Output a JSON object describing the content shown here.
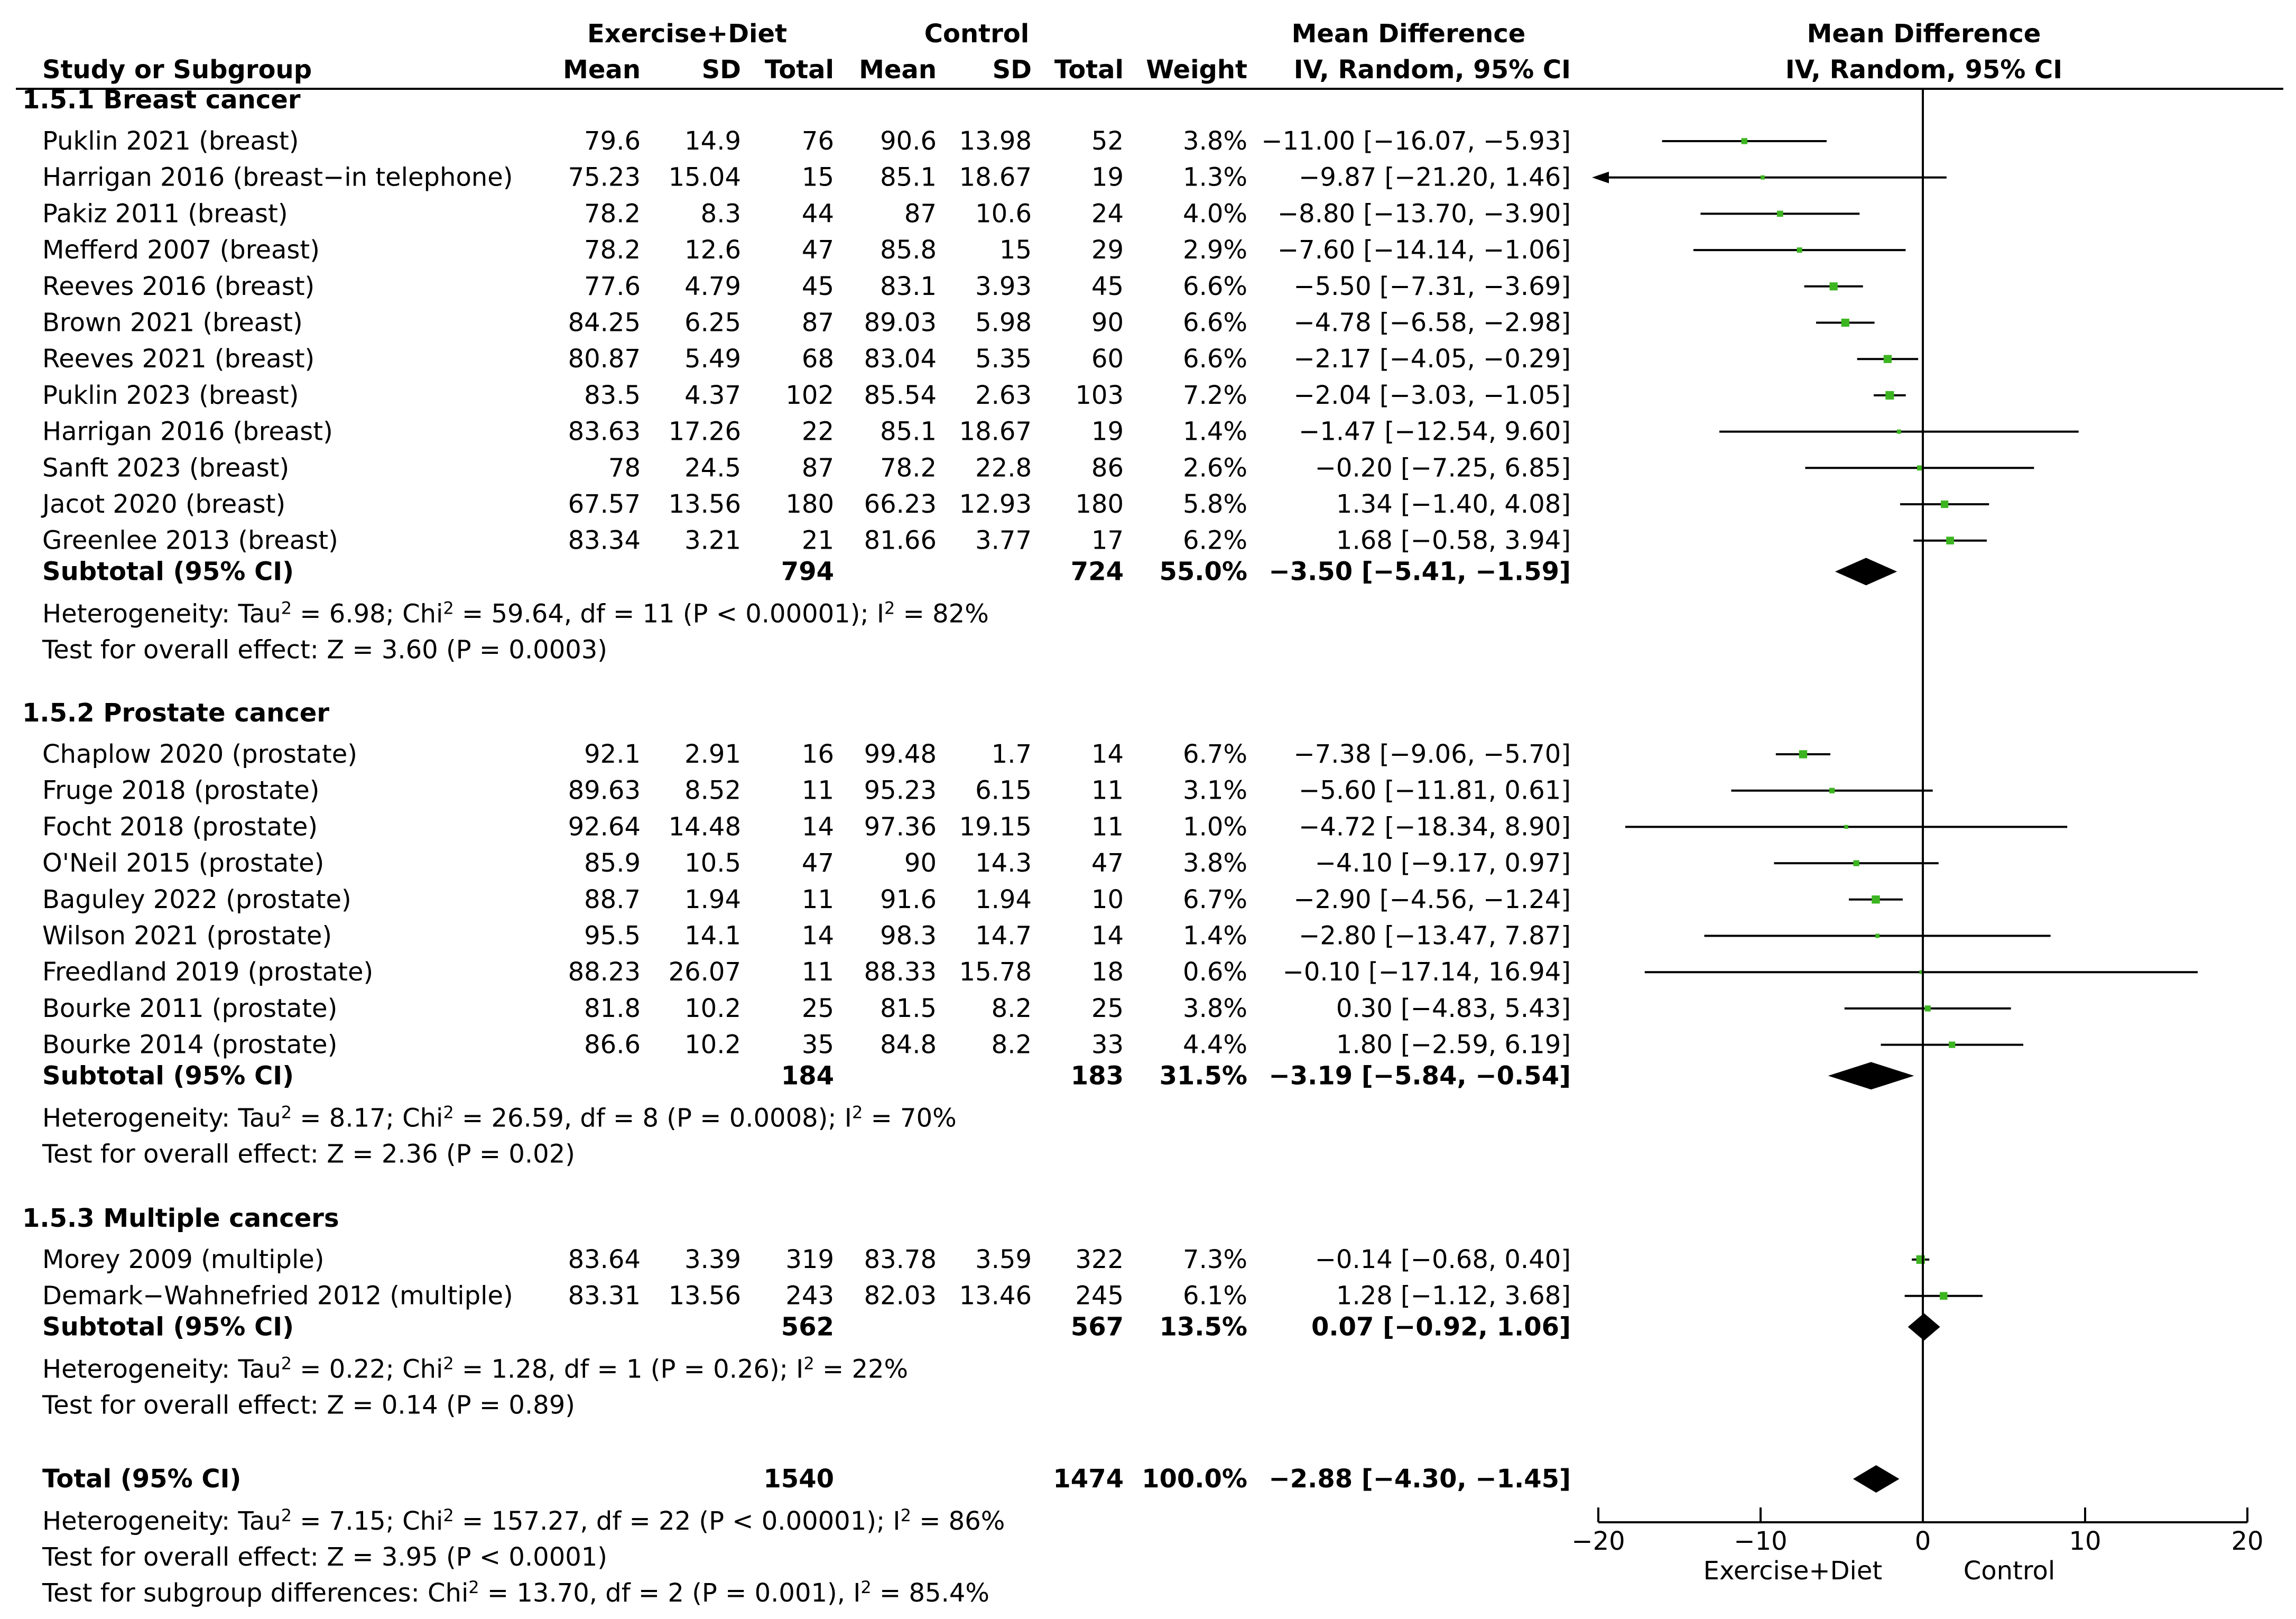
{
  "chart_data": {
    "type": "forest",
    "title": "",
    "header": {
      "group1": "Exercise+Diet",
      "group2": "Control",
      "md_group": "Mean Difference",
      "study": "Study or Subgroup",
      "mean": "Mean",
      "sd": "SD",
      "total": "Total",
      "weight": "Weight",
      "md_method": "IV, Random, 95% CI",
      "plot_title": "Mean Difference",
      "plot_method": "IV, Random, 95% CI"
    },
    "xaxis": {
      "ticks": [
        -20,
        -10,
        0,
        10,
        20
      ],
      "tick_labels": [
        "−20",
        "−10",
        "0",
        "10",
        "20"
      ],
      "xlim": [
        -20,
        20
      ],
      "label_left": "Exercise+Diet",
      "label_right": "Control"
    },
    "subgroups": [
      {
        "title": "1.5.1 Breast cancer",
        "studies": [
          {
            "name": "Puklin 2021 (breast)",
            "m1": "79.6",
            "sd1": "14.9",
            "n1": "76",
            "m2": "90.6",
            "sd2": "13.98",
            "n2": "52",
            "weight": "3.8%",
            "ci_text": "−11.00 [−16.07, −5.93]",
            "md": -11.0,
            "lo": -16.07,
            "hi": -5.93
          },
          {
            "name": "Harrigan 2016 (breast−in telephone)",
            "m1": "75.23",
            "sd1": "15.04",
            "n1": "15",
            "m2": "85.1",
            "sd2": "18.67",
            "n2": "19",
            "weight": "1.3%",
            "ci_text": "−9.87 [−21.20, 1.46]",
            "md": -9.87,
            "lo": -21.2,
            "hi": 1.46
          },
          {
            "name": "Pakiz 2011 (breast)",
            "m1": "78.2",
            "sd1": "8.3",
            "n1": "44",
            "m2": "87",
            "sd2": "10.6",
            "n2": "24",
            "weight": "4.0%",
            "ci_text": "−8.80 [−13.70, −3.90]",
            "md": -8.8,
            "lo": -13.7,
            "hi": -3.9
          },
          {
            "name": "Mefferd 2007 (breast)",
            "m1": "78.2",
            "sd1": "12.6",
            "n1": "47",
            "m2": "85.8",
            "sd2": "15",
            "n2": "29",
            "weight": "2.9%",
            "ci_text": "−7.60 [−14.14, −1.06]",
            "md": -7.6,
            "lo": -14.14,
            "hi": -1.06
          },
          {
            "name": "Reeves 2016 (breast)",
            "m1": "77.6",
            "sd1": "4.79",
            "n1": "45",
            "m2": "83.1",
            "sd2": "3.93",
            "n2": "45",
            "weight": "6.6%",
            "ci_text": "−5.50 [−7.31, −3.69]",
            "md": -5.5,
            "lo": -7.31,
            "hi": -3.69
          },
          {
            "name": "Brown 2021 (breast)",
            "m1": "84.25",
            "sd1": "6.25",
            "n1": "87",
            "m2": "89.03",
            "sd2": "5.98",
            "n2": "90",
            "weight": "6.6%",
            "ci_text": "−4.78 [−6.58, −2.98]",
            "md": -4.78,
            "lo": -6.58,
            "hi": -2.98
          },
          {
            "name": "Reeves 2021 (breast)",
            "m1": "80.87",
            "sd1": "5.49",
            "n1": "68",
            "m2": "83.04",
            "sd2": "5.35",
            "n2": "60",
            "weight": "6.6%",
            "ci_text": "−2.17 [−4.05, −0.29]",
            "md": -2.17,
            "lo": -4.05,
            "hi": -0.29
          },
          {
            "name": "Puklin  2023 (breast)",
            "m1": "83.5",
            "sd1": "4.37",
            "n1": "102",
            "m2": "85.54",
            "sd2": "2.63",
            "n2": "103",
            "weight": "7.2%",
            "ci_text": "−2.04 [−3.03, −1.05]",
            "md": -2.04,
            "lo": -3.03,
            "hi": -1.05
          },
          {
            "name": "Harrigan 2016 (breast)",
            "m1": "83.63",
            "sd1": "17.26",
            "n1": "22",
            "m2": "85.1",
            "sd2": "18.67",
            "n2": "19",
            "weight": "1.4%",
            "ci_text": "−1.47 [−12.54, 9.60]",
            "md": -1.47,
            "lo": -12.54,
            "hi": 9.6
          },
          {
            "name": "Sanft 2023 (breast)",
            "m1": "78",
            "sd1": "24.5",
            "n1": "87",
            "m2": "78.2",
            "sd2": "22.8",
            "n2": "86",
            "weight": "2.6%",
            "ci_text": "−0.20 [−7.25, 6.85]",
            "md": -0.2,
            "lo": -7.25,
            "hi": 6.85
          },
          {
            "name": "Jacot 2020 (breast)",
            "m1": "67.57",
            "sd1": "13.56",
            "n1": "180",
            "m2": "66.23",
            "sd2": "12.93",
            "n2": "180",
            "weight": "5.8%",
            "ci_text": "1.34 [−1.40, 4.08]",
            "md": 1.34,
            "lo": -1.4,
            "hi": 4.08
          },
          {
            "name": "Greenlee 2013 (breast)",
            "m1": "83.34",
            "sd1": "3.21",
            "n1": "21",
            "m2": "81.66",
            "sd2": "3.77",
            "n2": "17",
            "weight": "6.2%",
            "ci_text": "1.68 [−0.58, 3.94]",
            "md": 1.68,
            "lo": -0.58,
            "hi": 3.94
          }
        ],
        "subtotal": {
          "label": "Subtotal (95% CI)",
          "n1": "794",
          "n2": "724",
          "weight": "55.0%",
          "ci_text": "−3.50 [−5.41, −1.59]",
          "md": -3.5,
          "lo": -5.41,
          "hi": -1.59
        },
        "heterogeneity": {
          "prefix": "Heterogeneity: Tau",
          "mid": " = 6.98; Chi",
          "mid2": " = 59.64, df = 11 (P < 0.00001); I",
          "end": " = 82%"
        },
        "overall": "Test for overall effect: Z = 3.60 (P = 0.0003)"
      },
      {
        "title": "1.5.2 Prostate cancer",
        "studies": [
          {
            "name": "Chaplow 2020 (prostate)",
            "m1": "92.1",
            "sd1": "2.91",
            "n1": "16",
            "m2": "99.48",
            "sd2": "1.7",
            "n2": "14",
            "weight": "6.7%",
            "ci_text": "−7.38 [−9.06, −5.70]",
            "md": -7.38,
            "lo": -9.06,
            "hi": -5.7
          },
          {
            "name": "Fruge 2018 (prostate)",
            "m1": "89.63",
            "sd1": "8.52",
            "n1": "11",
            "m2": "95.23",
            "sd2": "6.15",
            "n2": "11",
            "weight": "3.1%",
            "ci_text": "−5.60 [−11.81, 0.61]",
            "md": -5.6,
            "lo": -11.81,
            "hi": 0.61
          },
          {
            "name": "Focht 2018 (prostate)",
            "m1": "92.64",
            "sd1": "14.48",
            "n1": "14",
            "m2": "97.36",
            "sd2": "19.15",
            "n2": "11",
            "weight": "1.0%",
            "ci_text": "−4.72 [−18.34, 8.90]",
            "md": -4.72,
            "lo": -18.34,
            "hi": 8.9
          },
          {
            "name": "O'Neil 2015 (prostate)",
            "m1": "85.9",
            "sd1": "10.5",
            "n1": "47",
            "m2": "90",
            "sd2": "14.3",
            "n2": "47",
            "weight": "3.8%",
            "ci_text": "−4.10 [−9.17, 0.97]",
            "md": -4.1,
            "lo": -9.17,
            "hi": 0.97
          },
          {
            "name": "Baguley 2022 (prostate)",
            "m1": "88.7",
            "sd1": "1.94",
            "n1": "11",
            "m2": "91.6",
            "sd2": "1.94",
            "n2": "10",
            "weight": "6.7%",
            "ci_text": "−2.90 [−4.56, −1.24]",
            "md": -2.9,
            "lo": -4.56,
            "hi": -1.24
          },
          {
            "name": "Wilson 2021 (prostate)",
            "m1": "95.5",
            "sd1": "14.1",
            "n1": "14",
            "m2": "98.3",
            "sd2": "14.7",
            "n2": "14",
            "weight": "1.4%",
            "ci_text": "−2.80 [−13.47, 7.87]",
            "md": -2.8,
            "lo": -13.47,
            "hi": 7.87
          },
          {
            "name": "Freedland 2019 (prostate)",
            "m1": "88.23",
            "sd1": "26.07",
            "n1": "11",
            "m2": "88.33",
            "sd2": "15.78",
            "n2": "18",
            "weight": "0.6%",
            "ci_text": "−0.10 [−17.14, 16.94]",
            "md": -0.1,
            "lo": -17.14,
            "hi": 16.94
          },
          {
            "name": "Bourke 2011 (prostate)",
            "m1": "81.8",
            "sd1": "10.2",
            "n1": "25",
            "m2": "81.5",
            "sd2": "8.2",
            "n2": "25",
            "weight": "3.8%",
            "ci_text": "0.30 [−4.83, 5.43]",
            "md": 0.3,
            "lo": -4.83,
            "hi": 5.43
          },
          {
            "name": "Bourke 2014 (prostate)",
            "m1": "86.6",
            "sd1": "10.2",
            "n1": "35",
            "m2": "84.8",
            "sd2": "8.2",
            "n2": "33",
            "weight": "4.4%",
            "ci_text": "1.80 [−2.59, 6.19]",
            "md": 1.8,
            "lo": -2.59,
            "hi": 6.19
          }
        ],
        "subtotal": {
          "label": "Subtotal (95% CI)",
          "n1": "184",
          "n2": "183",
          "weight": "31.5%",
          "ci_text": "−3.19 [−5.84, −0.54]",
          "md": -3.19,
          "lo": -5.84,
          "hi": -0.54
        },
        "heterogeneity": {
          "prefix": "Heterogeneity: Tau",
          "mid": " = 8.17; Chi",
          "mid2": " = 26.59, df = 8 (P = 0.0008); I",
          "end": " = 70%"
        },
        "overall": "Test for overall effect: Z = 2.36 (P = 0.02)"
      },
      {
        "title": "1.5.3 Multiple cancers",
        "studies": [
          {
            "name": "Morey 2009 (multiple)",
            "m1": "83.64",
            "sd1": "3.39",
            "n1": "319",
            "m2": "83.78",
            "sd2": "3.59",
            "n2": "322",
            "weight": "7.3%",
            "ci_text": "−0.14 [−0.68, 0.40]",
            "md": -0.14,
            "lo": -0.68,
            "hi": 0.4
          },
          {
            "name": "Demark−Wahnefried 2012 (multiple)",
            "m1": "83.31",
            "sd1": "13.56",
            "n1": "243",
            "m2": "82.03",
            "sd2": "13.46",
            "n2": "245",
            "weight": "6.1%",
            "ci_text": "1.28 [−1.12, 3.68]",
            "md": 1.28,
            "lo": -1.12,
            "hi": 3.68
          }
        ],
        "subtotal": {
          "label": "Subtotal (95% CI)",
          "n1": "562",
          "n2": "567",
          "weight": "13.5%",
          "ci_text": "0.07 [−0.92, 1.06]",
          "md": 0.07,
          "lo": -0.92,
          "hi": 1.06
        },
        "heterogeneity": {
          "prefix": "Heterogeneity: Tau",
          "mid": " = 0.22; Chi",
          "mid2": " = 1.28, df = 1 (P = 0.26); I",
          "end": " = 22%"
        },
        "overall": "Test for overall effect: Z = 0.14 (P = 0.89)"
      }
    ],
    "total": {
      "label": "Total (95% CI)",
      "n1": "1540",
      "n2": "1474",
      "weight": "100.0%",
      "ci_text": "−2.88 [−4.30, −1.45]",
      "md": -2.88,
      "lo": -4.3,
      "hi": -1.45
    },
    "total_heterogeneity": {
      "prefix": "Heterogeneity: Tau",
      "mid": " = 7.15; Chi",
      "mid2": " = 157.27, df = 22 (P < 0.00001); I",
      "end": " = 86%"
    },
    "total_overall": "Test for overall effect: Z = 3.95 (P < 0.0001)",
    "subgroup_diff": {
      "prefix": "Test for subgroup differences: Chi",
      "mid": " = 13.70, df = 2 (P = 0.001), I",
      "end": " = 85.4%"
    },
    "sup": "2",
    "colors": {
      "marker": "#3cb521",
      "line": "#000000",
      "background": "#ffffff"
    }
  }
}
